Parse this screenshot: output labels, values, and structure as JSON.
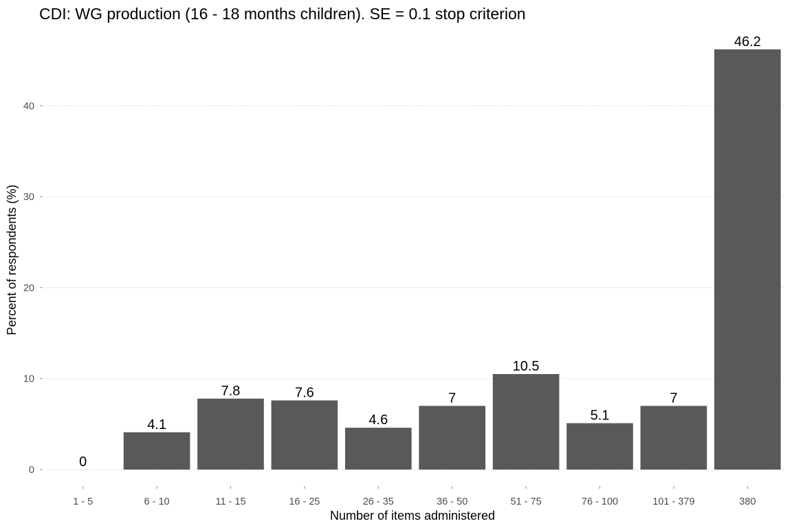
{
  "chart_data": {
    "type": "bar",
    "title": "CDI: WG production (16 - 18 months children). SE = 0.1 stop criterion",
    "xlabel": "Number of items administered",
    "ylabel": "Percent of respondents (%)",
    "categories": [
      "1 - 5",
      "6 - 10",
      "11 - 15",
      "16 - 25",
      "26 - 35",
      "36 - 50",
      "51 - 75",
      "76 - 100",
      "101 - 379",
      "380"
    ],
    "values": [
      0,
      4.1,
      7.8,
      7.6,
      4.6,
      7,
      10.5,
      5.1,
      7,
      46.2
    ],
    "data_labels": [
      "0",
      "4.1",
      "7.8",
      "7.6",
      "4.6",
      "7",
      "10.5",
      "5.1",
      "7",
      "46.2"
    ],
    "yticks": [
      0,
      10,
      20,
      30,
      40
    ],
    "ytick_labels": [
      "0",
      "10",
      "20",
      "30",
      "40"
    ],
    "ylim": [
      0,
      46.2
    ],
    "grid": "horizontal dotted",
    "bar_color": "#595959"
  }
}
